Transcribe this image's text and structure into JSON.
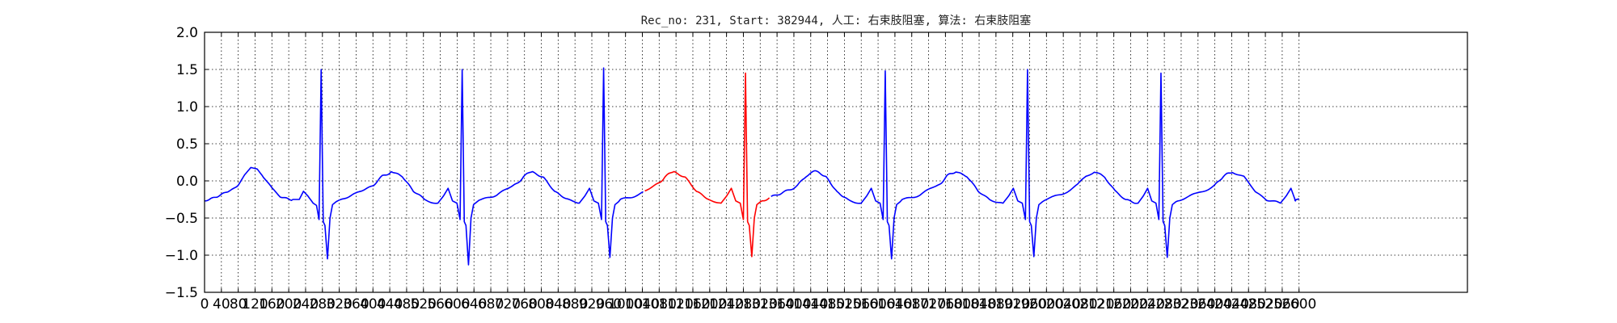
{
  "chart_data": {
    "type": "line",
    "title": "Rec_no: 231, Start: 382944, 人工: 右束肢阻塞, 算法: 右束肢阻塞",
    "xlabel": "",
    "ylabel": "",
    "xlim": [
      0,
      3000
    ],
    "ylim": [
      -1.5,
      2.0
    ],
    "grid": true,
    "grid_style": "dotted",
    "xticks": [
      0,
      40,
      80,
      120,
      160,
      200,
      240,
      280,
      320,
      360,
      400,
      440,
      480,
      520,
      560,
      600,
      640,
      680,
      720,
      760,
      800,
      840,
      880,
      920,
      960,
      1000,
      1040,
      1080,
      1120,
      1160,
      1200,
      1240,
      1280,
      1320,
      1360,
      1400,
      1440,
      1480,
      1520,
      1560,
      1600,
      1640,
      1680,
      1720,
      1760,
      1800,
      1840,
      1880,
      1920,
      1960,
      2000,
      2040,
      2080,
      2120,
      2160,
      2200,
      2240,
      2280,
      2320,
      2360,
      2400,
      2440,
      2480,
      2520,
      2560,
      2600
    ],
    "xtick_labels": [
      "0",
      "40",
      "80",
      "120",
      "160",
      "200",
      "240",
      "280",
      "320",
      "360",
      "400",
      "440",
      "480",
      "520",
      "560",
      "600",
      "640",
      "680",
      "720",
      "760",
      "800",
      "840",
      "880",
      "920",
      "960",
      "1000",
      "1040",
      "1080",
      "1120",
      "1160",
      "1200",
      "1240",
      "1280",
      "1320",
      "1360",
      "1400",
      "1440",
      "1480",
      "1520",
      "1560",
      "1600",
      "1640",
      "1680",
      "1720",
      "1760",
      "1800",
      "1840",
      "1880",
      "1920",
      "1960",
      "2000",
      "2040",
      "2080",
      "2120",
      "2160",
      "2200",
      "2240",
      "2280",
      "2320",
      "2360",
      "2400",
      "2440",
      "2480",
      "2520",
      "2560",
      "2600"
    ],
    "yticks": [
      -1.5,
      -1.0,
      -0.5,
      0.0,
      0.5,
      1.0,
      1.5,
      2.0
    ],
    "ytick_labels": [
      "−1.5",
      "−1.0",
      "−0.5",
      "0.0",
      "0.5",
      "1.0",
      "1.5",
      "2.0"
    ],
    "baseline": [
      [
        0,
        -0.27
      ],
      [
        30,
        -0.22
      ],
      [
        60,
        -0.14
      ],
      [
        80,
        -0.06
      ],
      [
        95,
        0.08
      ],
      [
        110,
        0.18
      ],
      [
        125,
        0.16
      ],
      [
        140,
        0.05
      ],
      [
        160,
        -0.1
      ],
      [
        180,
        -0.2
      ],
      [
        210,
        -0.25
      ],
      [
        225,
        -0.25
      ],
      [
        235,
        -0.14
      ],
      [
        245,
        -0.2
      ],
      [
        258,
        -0.3
      ],
      [
        266,
        -0.33
      ],
      [
        272,
        -0.52
      ]
    ],
    "beat_template": {
      "qrs": [
        [
          0,
          -0.52
        ],
        [
          5,
          1.5
        ],
        [
          10,
          -0.55
        ],
        [
          14,
          -0.6
        ],
        [
          20,
          -1.05
        ],
        [
          26,
          -0.5
        ],
        [
          32,
          -0.32
        ],
        [
          45,
          -0.26
        ]
      ],
      "between": [
        [
          0,
          -0.26
        ],
        [
          40,
          -0.18
        ],
        [
          80,
          -0.06
        ],
        [
          100,
          0.06
        ],
        [
          120,
          0.13
        ],
        [
          145,
          0.05
        ],
        [
          170,
          -0.15
        ],
        [
          195,
          -0.25
        ],
        [
          225,
          -0.3
        ],
        [
          238,
          -0.2
        ],
        [
          248,
          -0.1
        ],
        [
          258,
          -0.27
        ],
        [
          268,
          -0.3
        ],
        [
          275,
          -0.52
        ]
      ]
    },
    "series": [
      {
        "color": "#0000ff",
        "segments": [
          [
            0,
            1045
          ],
          [
            1345,
            2600
          ]
        ]
      },
      {
        "color": "#ff0000",
        "segments": [
          [
            1045,
            1345
          ]
        ]
      }
    ],
    "r_peaks": [
      {
        "x": 277,
        "y": 1.5
      },
      {
        "x": 612,
        "y": 1.5
      },
      {
        "x": 948,
        "y": 1.52
      },
      {
        "x": 1285,
        "y": 1.45
      },
      {
        "x": 1617,
        "y": 1.48
      },
      {
        "x": 1955,
        "y": 1.5
      },
      {
        "x": 2272,
        "y": 1.45
      }
    ],
    "s_troughs": [
      -1.05,
      -1.13,
      -1.03,
      -1.02,
      -1.05,
      -1.02,
      -1.03
    ]
  }
}
